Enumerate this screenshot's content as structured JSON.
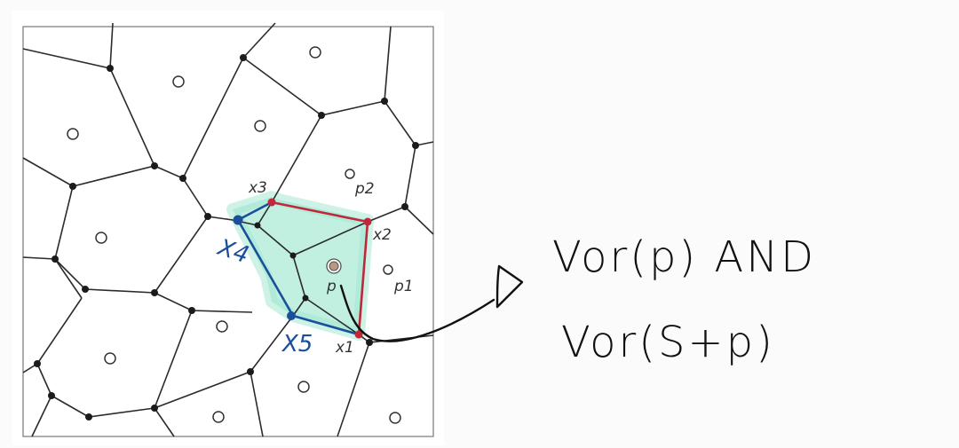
{
  "diagram": {
    "labels": {
      "x1": "x1",
      "x2": "x2",
      "x3": "x3",
      "p": "p",
      "p1": "p1",
      "p2": "p2",
      "x4_hand": "X4",
      "x5_hand": "X5"
    },
    "annotation": {
      "line1": "Vor(p) AND",
      "line2": "Vor(S+p)"
    },
    "colors": {
      "edge": "#2b2b2b",
      "vertex": "#1b1b1b",
      "region_fill": "#9fe6cf",
      "red": "#c0283a",
      "blue": "#1a4f9c",
      "site_p": "#b89a82"
    }
  }
}
